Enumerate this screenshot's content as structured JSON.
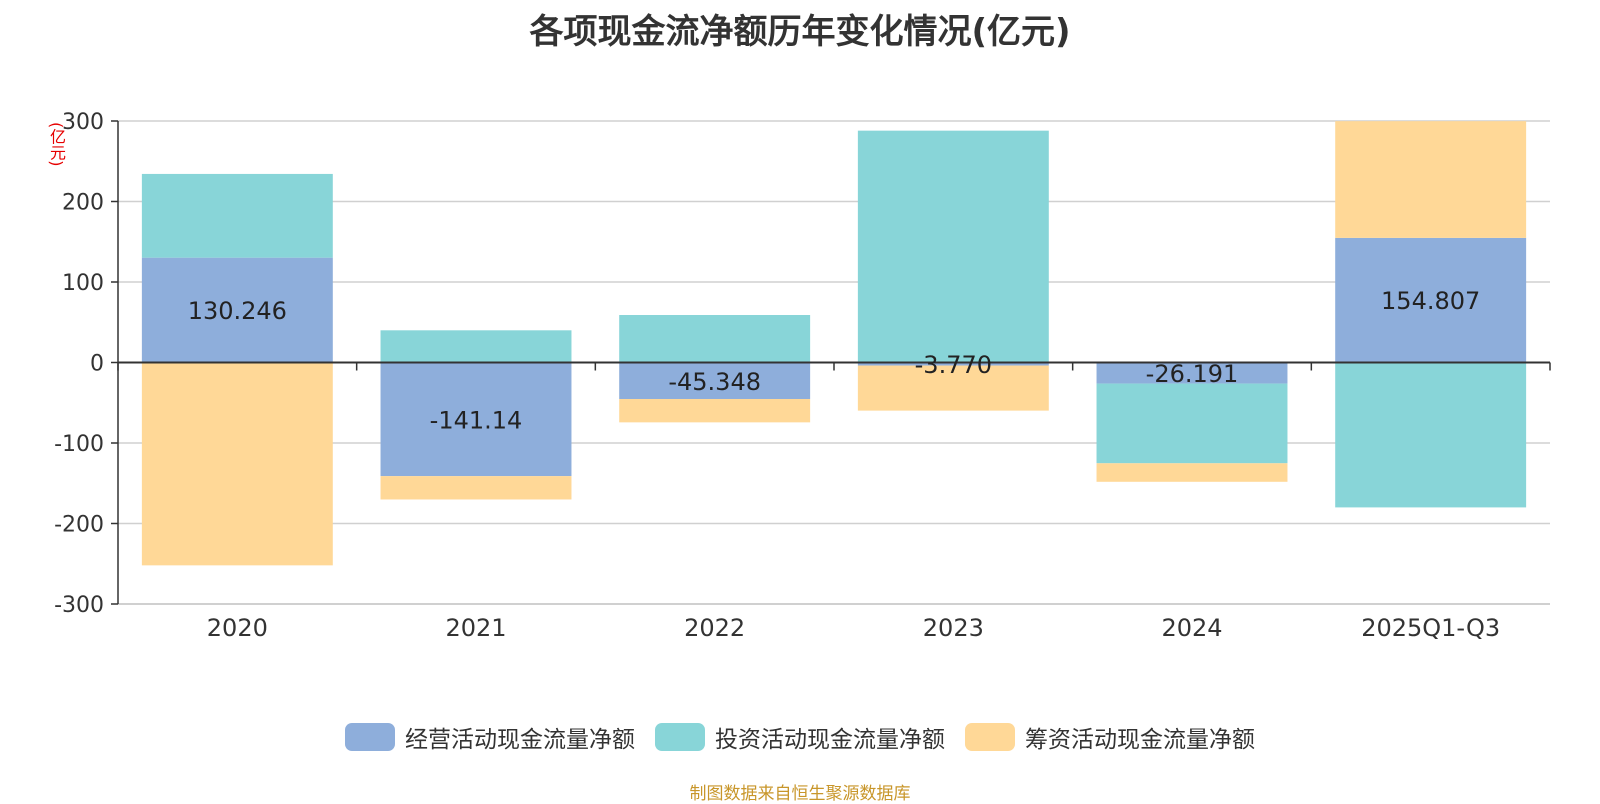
{
  "chart_data": {
    "type": "bar",
    "stacked": true,
    "title": "各项现金流净额历年变化情况(亿元)",
    "ylabel": "(亿元)",
    "ylim": [
      -300,
      300
    ],
    "yticks": [
      300,
      200,
      100,
      0,
      -100,
      -200,
      -300
    ],
    "categories": [
      "2020",
      "2021",
      "2022",
      "2023",
      "2024",
      "2025Q1-Q3"
    ],
    "series": [
      {
        "name": "经营活动现金流量净额",
        "color": "#8eaedb",
        "values": [
          130.246,
          -141.14,
          -45.348,
          -3.77,
          -26.191,
          154.807
        ]
      },
      {
        "name": "投资活动现金流量净额",
        "color": "#88d5d8",
        "values": [
          104,
          40,
          59,
          288,
          -99,
          -180
        ]
      },
      {
        "name": "筹资活动现金流量净额",
        "color": "#ffd897",
        "values": [
          -252,
          -29,
          -29,
          -56,
          -23,
          145
        ]
      }
    ],
    "data_labels": [
      "130.246",
      "-141.14",
      "-45.348",
      "-3.770",
      "-26.191",
      "154.807"
    ]
  },
  "source_note": "制图数据来自恒生聚源数据库"
}
